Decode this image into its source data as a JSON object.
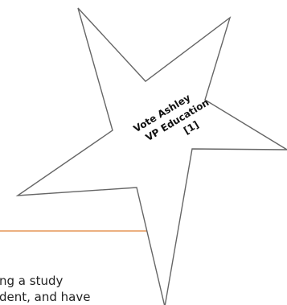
{
  "document": {
    "body_lines": [
      "ng a study",
      "dent, and have"
    ]
  },
  "callout": {
    "line1": "Vote Ashley",
    "line2": "VP Education",
    "line3": "[1]"
  },
  "colors": {
    "rule": "#ecb081",
    "star_outline": "#666666",
    "text": "#222222"
  }
}
